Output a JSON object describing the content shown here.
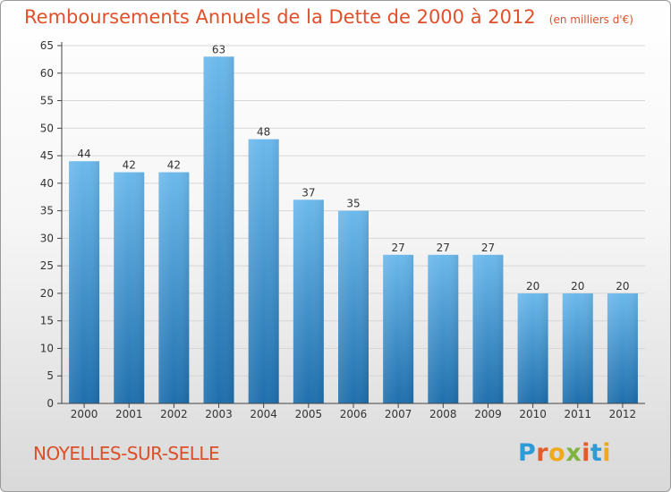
{
  "header": {
    "title": "Remboursements Annuels de la Dette de 2000 à 2012",
    "unit": "(en milliers d'€)"
  },
  "footer": {
    "commune": "NOYELLES-SUR-SELLE",
    "logo": "Proxiti",
    "logo_colors": [
      "#2e9ad6",
      "#e35d2b",
      "#f0a81c",
      "#7fb53e",
      "#e35d2b",
      "#2e9ad6",
      "#f0a81c"
    ]
  },
  "colors": {
    "bar_top": "#6cb9ec",
    "bar_bottom": "#1f6fad",
    "title": "#e0502a",
    "axis": "#444444",
    "grid": "#d6d6d6"
  },
  "chart_data": {
    "type": "bar",
    "categories": [
      "2000",
      "2001",
      "2002",
      "2003",
      "2004",
      "2005",
      "2006",
      "2007",
      "2008",
      "2009",
      "2010",
      "2011",
      "2012"
    ],
    "values": [
      44,
      42,
      42,
      63,
      48,
      37,
      35,
      27,
      27,
      27,
      20,
      20,
      20
    ],
    "ylim": [
      0,
      65
    ],
    "yticks": [
      0,
      5,
      10,
      15,
      20,
      25,
      30,
      35,
      40,
      45,
      50,
      55,
      60,
      65
    ],
    "grid": true,
    "data_labels": true
  }
}
